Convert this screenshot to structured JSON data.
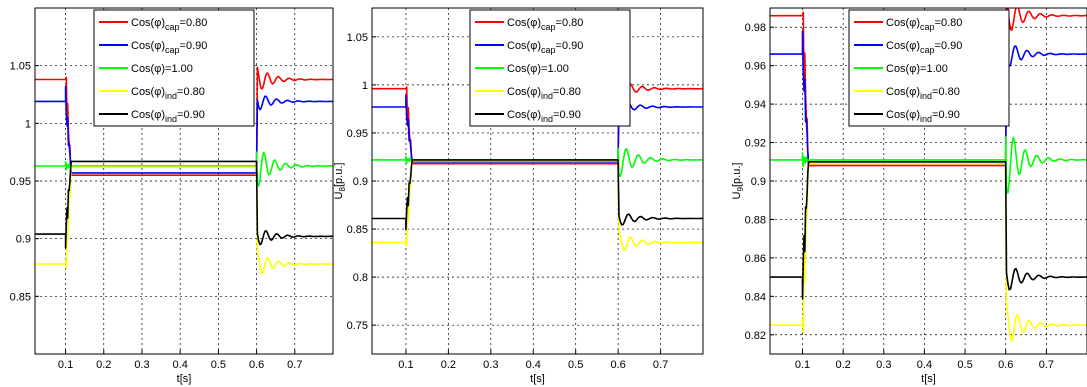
{
  "legend_entries": [
    {
      "prefix": "Cos(φ)",
      "sub": "cap",
      "suffix": "=0.80",
      "color": "#ff0000"
    },
    {
      "prefix": "Cos(φ)",
      "sub": "cap",
      "suffix": "=0.90",
      "color": "#0000ff"
    },
    {
      "prefix": "Cos(φ)",
      "sub": "",
      "suffix": "=1.00",
      "color": "#00ff00"
    },
    {
      "prefix": "Cos(φ)",
      "sub": "ind",
      "suffix": "=0.80",
      "color": "#ffff00"
    },
    {
      "prefix": "Cos(φ)",
      "sub": "ind",
      "suffix": "=0.90",
      "color": "#000000"
    }
  ],
  "chart_data": [
    {
      "type": "line",
      "xlabel": "t[s]",
      "ylabel": "",
      "ylabel_sub": "",
      "xlim": [
        0.02,
        0.8
      ],
      "ylim": [
        0.8,
        1.1
      ],
      "xticks": [
        0.1,
        0.2,
        0.3,
        0.4,
        0.5,
        0.6,
        0.7
      ],
      "xtick_labels": [
        "0.1",
        "0.2",
        "0.3",
        "0.4",
        "0.5",
        "0.6",
        "0.7"
      ],
      "yticks": [
        0.85,
        0.9,
        0.95,
        1.0,
        1.05
      ],
      "ytick_labels": [
        "0.85",
        "0.9",
        "0.95",
        "1",
        "1.05"
      ],
      "grid": true,
      "legend_position": "top-center",
      "series": [
        {
          "name": "Cos(φ)cap=0.80",
          "color": "#ff0000",
          "pre": 1.038,
          "fault": 0.955,
          "post": 1.038
        },
        {
          "name": "Cos(φ)cap=0.90",
          "color": "#0000ff",
          "pre": 1.019,
          "fault": 0.957,
          "post": 1.019
        },
        {
          "name": "Cos(φ)=1.00",
          "color": "#00ff00",
          "pre": 0.963,
          "fault": 0.963,
          "post": 0.963
        },
        {
          "name": "Cos(φ)ind=0.80",
          "color": "#ffff00",
          "pre": 0.878,
          "fault": 0.962,
          "post": 0.878
        },
        {
          "name": "Cos(φ)ind=0.90",
          "color": "#000000",
          "pre": 0.904,
          "fault": 0.967,
          "post": 0.902
        }
      ]
    },
    {
      "type": "line",
      "xlabel": "t[s]",
      "ylabel": "U",
      "ylabel_sub": "8",
      "ylabel_suffix": "[p.u.]",
      "xlim": [
        0.02,
        0.8
      ],
      "ylim": [
        0.72,
        1.08
      ],
      "xticks": [
        0.1,
        0.2,
        0.3,
        0.4,
        0.5,
        0.6,
        0.7
      ],
      "xtick_labels": [
        "0.1",
        "0.2",
        "0.3",
        "0.4",
        "0.5",
        "0.6",
        "0.7"
      ],
      "yticks": [
        0.75,
        0.8,
        0.85,
        0.9,
        0.95,
        1.0,
        1.05
      ],
      "ytick_labels": [
        "0.75",
        "0.8",
        "0.85",
        "0.9",
        "0.95",
        "1",
        "1.05"
      ],
      "grid": true,
      "legend_position": "top-right",
      "series": [
        {
          "name": "Cos(φ)cap=0.80",
          "color": "#ff0000",
          "pre": 0.996,
          "fault": 0.918,
          "post": 0.996
        },
        {
          "name": "Cos(φ)cap=0.90",
          "color": "#0000ff",
          "pre": 0.977,
          "fault": 0.92,
          "post": 0.977
        },
        {
          "name": "Cos(φ)=1.00",
          "color": "#00ff00",
          "pre": 0.922,
          "fault": 0.922,
          "post": 0.922
        },
        {
          "name": "Cos(φ)ind=0.80",
          "color": "#ffff00",
          "pre": 0.836,
          "fault": 0.921,
          "post": 0.836
        },
        {
          "name": "Cos(φ)ind=0.90",
          "color": "#000000",
          "pre": 0.861,
          "fault": 0.922,
          "post": 0.861
        }
      ]
    },
    {
      "type": "line",
      "xlabel": "t[s]",
      "ylabel": "U",
      "ylabel_sub": "9",
      "ylabel_suffix": "[p.u.]",
      "xlim": [
        0.02,
        0.8
      ],
      "ylim": [
        0.81,
        0.99
      ],
      "xticks": [
        0.1,
        0.2,
        0.3,
        0.4,
        0.5,
        0.6,
        0.7
      ],
      "xtick_labels": [
        "0.1",
        "0.2",
        "0.3",
        "0.4",
        "0.5",
        "0.6",
        "0.7"
      ],
      "yticks": [
        0.82,
        0.84,
        0.86,
        0.88,
        0.9,
        0.92,
        0.94,
        0.96,
        0.98
      ],
      "ytick_labels": [
        "0.82",
        "0.84",
        "0.86",
        "0.88",
        "0.9",
        "0.92",
        "0.94",
        "0.96",
        "0.98"
      ],
      "grid": true,
      "legend_position": "top-center",
      "series": [
        {
          "name": "Cos(φ)cap=0.80",
          "color": "#ff0000",
          "pre": 0.986,
          "fault": 0.908,
          "post": 0.986
        },
        {
          "name": "Cos(φ)cap=0.90",
          "color": "#0000ff",
          "pre": 0.966,
          "fault": 0.909,
          "post": 0.966
        },
        {
          "name": "Cos(φ)=1.00",
          "color": "#00ff00",
          "pre": 0.911,
          "fault": 0.911,
          "post": 0.911
        },
        {
          "name": "Cos(φ)ind=0.80",
          "color": "#ffff00",
          "pre": 0.825,
          "fault": 0.909,
          "post": 0.825
        },
        {
          "name": "Cos(φ)ind=0.90",
          "color": "#000000",
          "pre": 0.85,
          "fault": 0.91,
          "post": 0.85
        }
      ]
    }
  ]
}
